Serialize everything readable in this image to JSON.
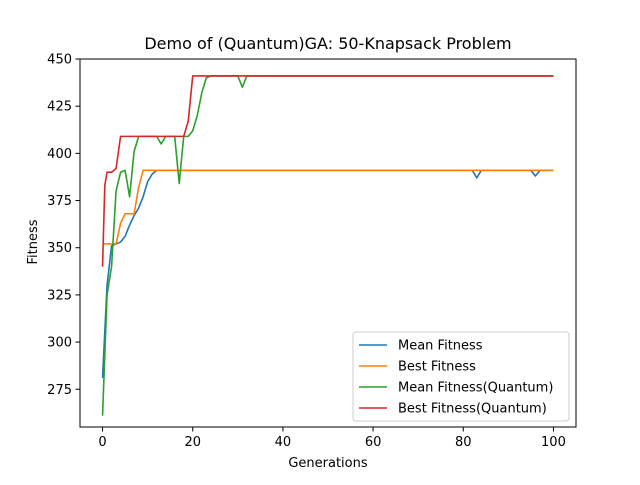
{
  "chart_data": {
    "type": "line",
    "title": "Demo of (Quantum)GA: 50-Knapsack Problem",
    "xlabel": "Generations",
    "ylabel": "Fitness",
    "xlim": [
      -5,
      105
    ],
    "ylim": [
      255,
      450
    ],
    "xticks": [
      0,
      20,
      40,
      60,
      80,
      100
    ],
    "yticks": [
      275,
      300,
      325,
      350,
      375,
      400,
      425,
      450
    ],
    "grid": false,
    "legend_position": "lower right",
    "series": [
      {
        "name": "Mean Fitness",
        "color": "#1f77b4",
        "x": [
          0,
          1,
          2,
          3,
          4,
          5,
          6,
          7,
          8,
          9,
          10,
          11,
          12,
          13,
          15,
          20,
          40,
          60,
          80,
          82,
          83,
          84,
          86,
          95,
          96,
          97,
          100
        ],
        "y": [
          281,
          330,
          351,
          352,
          353,
          356,
          362,
          367,
          371,
          377,
          385,
          389,
          391,
          391,
          391,
          391,
          391,
          391,
          391,
          391,
          387,
          391,
          391,
          391,
          388,
          391,
          391
        ]
      },
      {
        "name": "Best Fitness",
        "color": "#ff7f0e",
        "x": [
          0,
          1,
          2,
          3,
          4,
          5,
          6,
          7,
          8,
          9,
          10,
          20,
          40,
          60,
          80,
          100
        ],
        "y": [
          352,
          352,
          352,
          352,
          363,
          368,
          368,
          368,
          382,
          391,
          391,
          391,
          391,
          391,
          391,
          391
        ]
      },
      {
        "name": "Mean Fitness(Quantum)",
        "color": "#2ca02c",
        "x": [
          0,
          1,
          2,
          3,
          4,
          5,
          6,
          7,
          8,
          9,
          10,
          11,
          12,
          13,
          14,
          15,
          16,
          17,
          18,
          19,
          20,
          21,
          22,
          23,
          24,
          25,
          30,
          31,
          32,
          35,
          40,
          60,
          80,
          100
        ],
        "y": [
          261,
          325,
          340,
          380,
          390,
          391,
          377,
          401,
          409,
          409,
          409,
          409,
          409,
          405,
          409,
          409,
          409,
          384,
          409,
          409,
          412,
          420,
          432,
          440,
          441,
          441,
          441,
          435,
          441,
          441,
          441,
          441,
          441,
          441
        ]
      },
      {
        "name": "Best Fitness(Quantum)",
        "color": "#d62728",
        "x": [
          0,
          0.5,
          1,
          2,
          3,
          4,
          5,
          10,
          15,
          17,
          18,
          19,
          20,
          25,
          40,
          60,
          80,
          100
        ],
        "y": [
          340,
          383,
          390,
          390,
          392,
          409,
          409,
          409,
          409,
          409,
          409,
          417,
          441,
          441,
          441,
          441,
          441,
          441
        ]
      }
    ]
  }
}
